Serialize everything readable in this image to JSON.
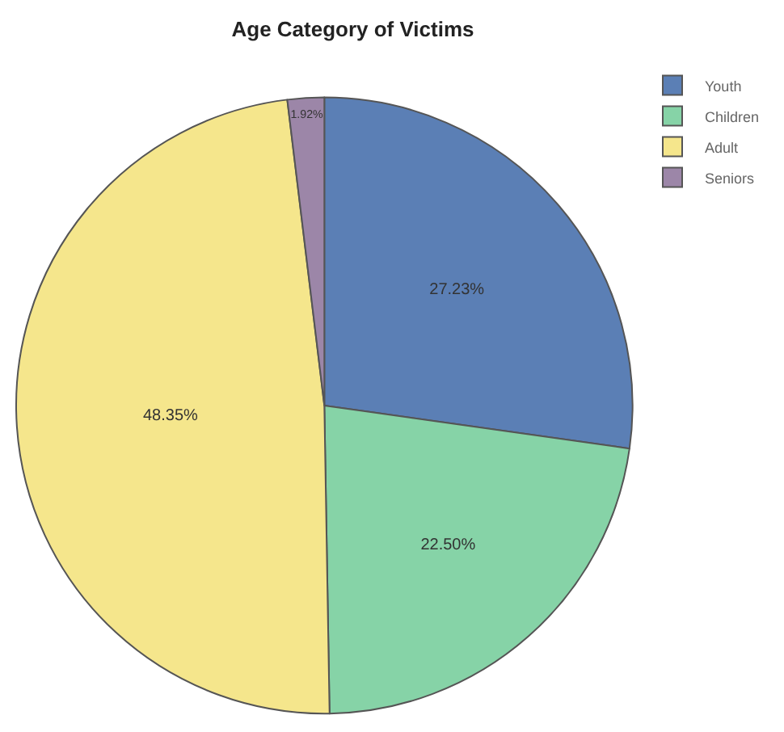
{
  "chart_data": {
    "type": "pie",
    "title": "Age Category of Victims",
    "categories": [
      "Youth",
      "Children",
      "Adult",
      "Seniors"
    ],
    "values": [
      27.23,
      22.5,
      48.35,
      1.92
    ],
    "value_labels": [
      "27.23%",
      "22.50%",
      "48.35%",
      "1.92%"
    ],
    "colors": [
      "#5b7fb5",
      "#86d3a7",
      "#f5e68c",
      "#9c86a8"
    ],
    "legend": "top right"
  }
}
